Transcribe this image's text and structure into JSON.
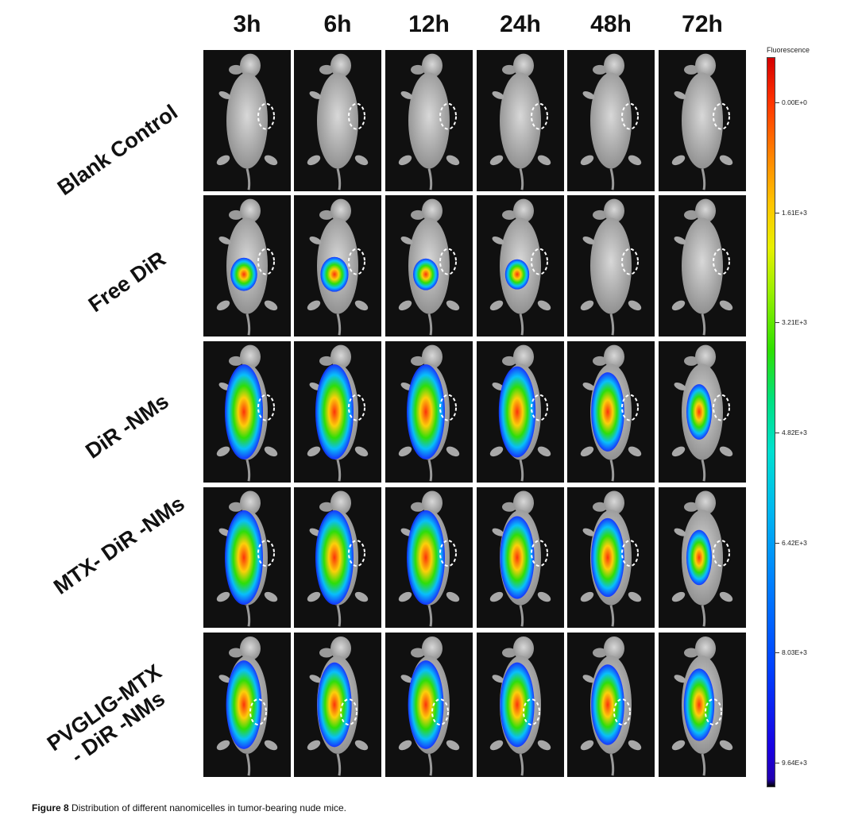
{
  "figure": {
    "columns": [
      "3h",
      "6h",
      "12h",
      "24h",
      "48h",
      "72h"
    ],
    "rows": [
      {
        "label": "Blank Control",
        "signal": [
          0,
          0,
          0,
          0,
          0,
          0
        ]
      },
      {
        "label": "Free DiR",
        "signal": [
          0.55,
          0.6,
          0.5,
          0.45,
          0,
          0
        ]
      },
      {
        "label": "DiR -NMs",
        "signal": [
          1,
          1,
          1,
          0.95,
          0.8,
          0.5
        ]
      },
      {
        "label": "MTX- DiR -NMs",
        "signal": [
          1,
          1,
          1,
          0.85,
          0.8,
          0.5
        ]
      },
      {
        "label": "PVGLIG-MTX\n- DiR -NMs",
        "signal": [
          0.9,
          0.85,
          0.9,
          0.85,
          0.8,
          0.7
        ]
      }
    ],
    "colorbar": {
      "title": "Fluorescence",
      "ticks": [
        "0.00E+0",
        "1.61E+3",
        "3.21E+3",
        "4.82E+3",
        "6.42E+3",
        "8.03E+3",
        "9.64E+3"
      ]
    },
    "caption": {
      "label": "Figure 8",
      "text": "Distribution of different nanomicelles in tumor-bearing nude mice."
    },
    "colors": {
      "background": "#101010",
      "mouse": "#b8b8b8",
      "tumor_outline": "#ffffff",
      "high": "#ff2a00",
      "mid": "#26e000",
      "low": "#1030ff"
    }
  }
}
